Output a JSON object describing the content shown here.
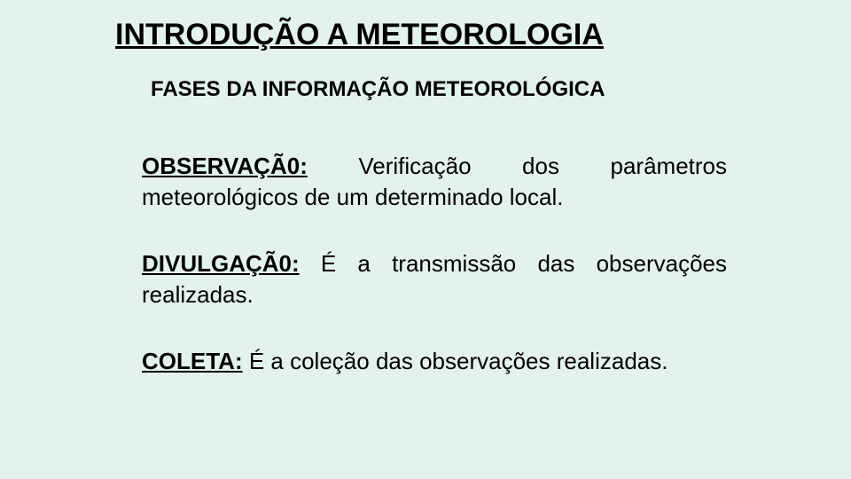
{
  "background_color": "#e3f2ed",
  "text_color": "#000000",
  "title": {
    "text": "INTRODUÇÃO A METEOROLOGIA",
    "font_size": 34,
    "font_weight": "bold",
    "underline": true
  },
  "subtitle": {
    "text": "FASES DA INFORMAÇÃO METEOROLÓGICA",
    "font_size": 24,
    "font_weight": "bold"
  },
  "definitions": [
    {
      "term": "OBSERVAÇÃ0:",
      "body": " Verificação dos parâmetros meteorológicos de um determinado local."
    },
    {
      "term": "DIVULGAÇÃ0:",
      "body": " É a transmissão das observações realizadas."
    },
    {
      "term": "COLETA:",
      "body": " É a coleção das observações realizadas."
    }
  ],
  "body_font_size": 26,
  "body_align": "justify"
}
